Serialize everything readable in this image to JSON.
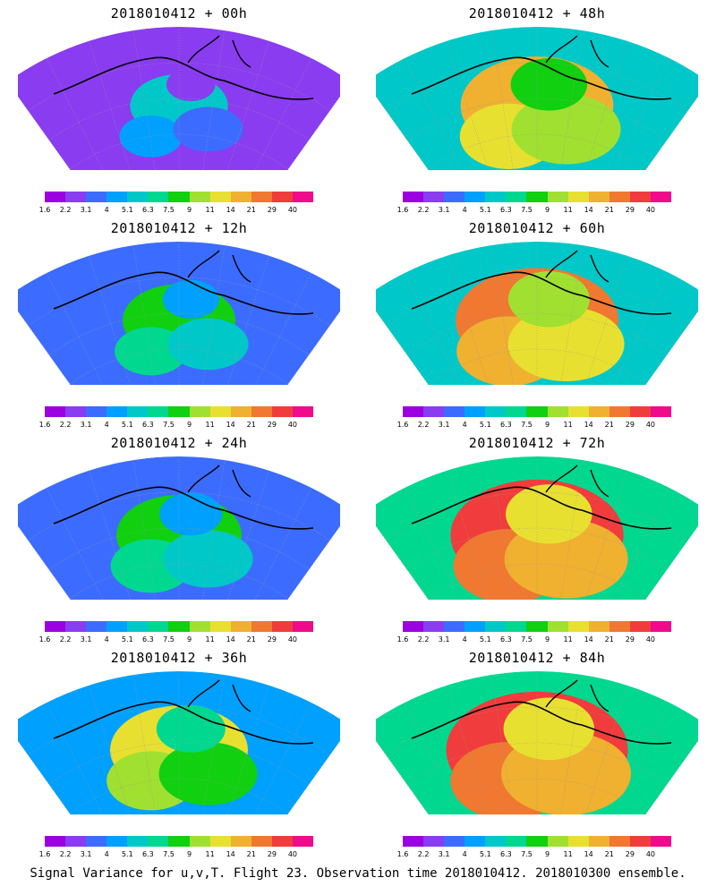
{
  "caption": "Signal Variance for u,v,T. Flight 23. Observation time 2018010412. 2018010300 ensemble.",
  "colorbar": {
    "ticks": [
      "1.6",
      "2.2",
      "3.1",
      "4",
      "5.1",
      "6.3",
      "7.5",
      "9",
      "11",
      "14",
      "21",
      "29",
      "40"
    ],
    "colors": [
      "#9b00e0",
      "#8a3cf0",
      "#3c6cff",
      "#00a0ff",
      "#00c8c8",
      "#00d890",
      "#10d010",
      "#a0e030",
      "#e8e030",
      "#f0b030",
      "#f07830",
      "#f03c3c",
      "#f00a8c"
    ]
  },
  "panels": [
    {
      "id": "00h",
      "title": "2018010412 + 00h",
      "intensity": 0.18
    },
    {
      "id": "48h",
      "title": "2018010412 + 48h",
      "intensity": 0.62
    },
    {
      "id": "12h",
      "title": "2018010412 + 12h",
      "intensity": 0.3
    },
    {
      "id": "60h",
      "title": "2018010412 + 60h",
      "intensity": 0.7
    },
    {
      "id": "24h",
      "title": "2018010412 + 24h",
      "intensity": 0.4
    },
    {
      "id": "72h",
      "title": "2018010412 + 72h",
      "intensity": 0.78
    },
    {
      "id": "36h",
      "title": "2018010412 + 36h",
      "intensity": 0.5
    },
    {
      "id": "84h",
      "title": "2018010412 + 84h",
      "intensity": 0.85
    }
  ]
}
